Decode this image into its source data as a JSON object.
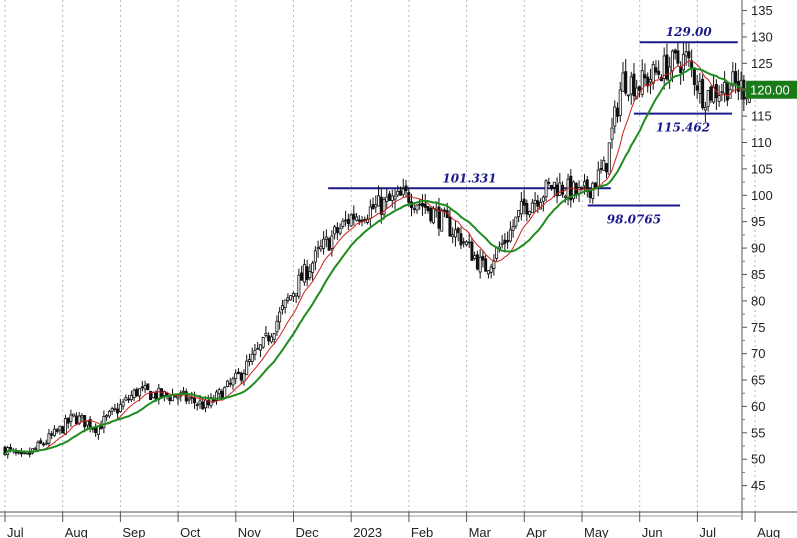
{
  "chart_data": {
    "type": "candlestick",
    "title": "",
    "xlabel": "",
    "ylabel": "",
    "ylim": [
      40,
      137
    ],
    "y_ticks": [
      45,
      50,
      55,
      60,
      65,
      70,
      75,
      80,
      85,
      90,
      95,
      100,
      105,
      110,
      115,
      120,
      125,
      130,
      135
    ],
    "x_ticks": [
      "Jul",
      "Aug",
      "Sep",
      "Oct",
      "Nov",
      "Dec",
      "2023",
      "Feb",
      "Mar",
      "Apr",
      "May",
      "Jun",
      "Jul",
      "Aug"
    ],
    "grid": "vertical dashed",
    "last_price": "120.00",
    "price_anchors": [
      {
        "month": 0.0,
        "price": 52
      },
      {
        "month": 0.3,
        "price": 50
      },
      {
        "month": 0.9,
        "price": 55
      },
      {
        "month": 1.2,
        "price": 58
      },
      {
        "month": 1.6,
        "price": 56
      },
      {
        "month": 2.0,
        "price": 60
      },
      {
        "month": 2.3,
        "price": 63
      },
      {
        "month": 2.7,
        "price": 62
      },
      {
        "month": 3.0,
        "price": 62
      },
      {
        "month": 3.5,
        "price": 60
      },
      {
        "month": 4.0,
        "price": 65
      },
      {
        "month": 4.5,
        "price": 72
      },
      {
        "month": 5.0,
        "price": 82
      },
      {
        "month": 5.5,
        "price": 90
      },
      {
        "month": 6.0,
        "price": 96
      },
      {
        "month": 6.5,
        "price": 98
      },
      {
        "month": 7.0,
        "price": 100
      },
      {
        "month": 7.4,
        "price": 97
      },
      {
        "month": 7.9,
        "price": 92
      },
      {
        "month": 8.3,
        "price": 86
      },
      {
        "month": 8.7,
        "price": 92
      },
      {
        "month": 9.0,
        "price": 98
      },
      {
        "month": 9.5,
        "price": 102
      },
      {
        "month": 10.0,
        "price": 100
      },
      {
        "month": 10.4,
        "price": 105
      },
      {
        "month": 10.7,
        "price": 122
      },
      {
        "month": 11.0,
        "price": 121
      },
      {
        "month": 11.4,
        "price": 124
      },
      {
        "month": 11.8,
        "price": 126
      },
      {
        "month": 12.1,
        "price": 119
      },
      {
        "month": 12.6,
        "price": 121
      },
      {
        "month": 12.9,
        "price": 120
      }
    ],
    "ma_fast_color": "#cc2222",
    "ma_slow_color": "#1f8c1f",
    "candle_color": "#111111",
    "annotations": [
      {
        "label": "129.00",
        "level": 129.0,
        "from_month": 11.0,
        "to_month": 12.7,
        "text_pos": "above"
      },
      {
        "label": "115.462",
        "level": 115.462,
        "from_month": 10.9,
        "to_month": 12.6,
        "text_pos": "below"
      },
      {
        "label": "101.331",
        "level": 101.331,
        "from_month": 5.6,
        "to_month": 10.5,
        "text_pos": "above"
      },
      {
        "label": "98.0765",
        "level": 98.0765,
        "from_month": 10.1,
        "to_month": 11.7,
        "text_pos": "below"
      }
    ],
    "annotation_color": "#1a1a8c",
    "price_tag_color": "#1a7a1a"
  }
}
